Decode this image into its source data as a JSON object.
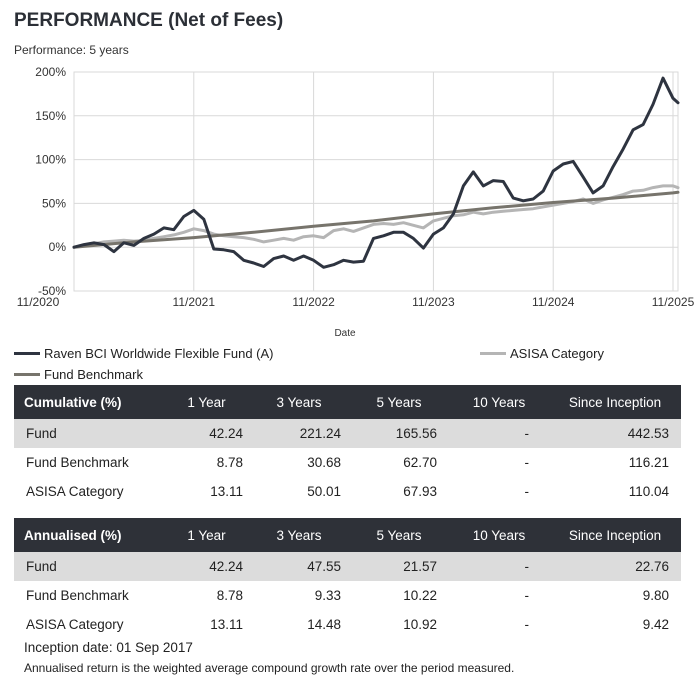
{
  "header": {
    "title": "PERFORMANCE (Net of Fees)",
    "subtitle": "Performance: 5 years"
  },
  "colors": {
    "fund": "#2e3440",
    "benchmark": "#77746c",
    "category": "#b5b5b5",
    "grid": "#d9d9d9",
    "table_header": "#2e3138",
    "row_shade": "#dcdcdc"
  },
  "chart_data": {
    "type": "line",
    "xlabel": "Date",
    "ylabel": "",
    "ylim": [
      -50,
      200
    ],
    "yticks": [
      -50,
      0,
      50,
      100,
      150,
      200
    ],
    "ytick_labels": [
      "-50%",
      "0%",
      "50%",
      "100%",
      "150%",
      "200%"
    ],
    "xlim": [
      0,
      60.5
    ],
    "xtick_labels": [
      "11/2020",
      "11/2021",
      "11/2022",
      "11/2023",
      "11/2024",
      "11/2025"
    ],
    "xticks": [
      0,
      12,
      24,
      36,
      48,
      60
    ],
    "grid": true,
    "series": [
      {
        "name": "Raven BCI Worldwide Flexible Fund (A)",
        "key": "fund",
        "x": [
          0,
          1,
          2,
          3,
          4,
          5,
          6,
          7,
          8,
          9,
          10,
          11,
          12,
          13,
          14,
          15,
          16,
          17,
          18,
          19,
          20,
          21,
          22,
          23,
          24,
          25,
          26,
          27,
          28,
          29,
          30,
          31,
          32,
          33,
          34,
          35,
          36,
          37,
          38,
          39,
          40,
          41,
          42,
          43,
          44,
          45,
          46,
          47,
          48,
          49,
          50,
          51,
          52,
          53,
          54,
          55,
          56,
          57,
          58,
          59,
          60,
          60.5
        ],
        "values": [
          0,
          3,
          5,
          3,
          -5,
          5,
          2,
          10,
          15,
          22,
          20,
          35,
          42,
          32,
          -2,
          -3,
          -5,
          -15,
          -18,
          -22,
          -13,
          -10,
          -15,
          -10,
          -15,
          -23,
          -20,
          -15,
          -17,
          -16,
          10,
          13,
          17,
          17,
          10,
          -1,
          15,
          22,
          38,
          70,
          86,
          70,
          76,
          75,
          56,
          53,
          55,
          64,
          87,
          95,
          98,
          80,
          62,
          70,
          92,
          112,
          134,
          140,
          163,
          193,
          170,
          165
        ]
      },
      {
        "name": "Fund Benchmark",
        "key": "benchmark",
        "x": [
          0,
          6,
          12,
          18,
          24,
          30,
          36,
          42,
          48,
          54,
          60,
          60.5
        ],
        "values": [
          0,
          6,
          11,
          17,
          24,
          30,
          38,
          45,
          51,
          56,
          62,
          62.7
        ]
      },
      {
        "name": "ASISA Category",
        "key": "category",
        "x": [
          0,
          1,
          2,
          3,
          4,
          5,
          6,
          7,
          8,
          9,
          10,
          11,
          12,
          13,
          14,
          15,
          16,
          17,
          18,
          19,
          20,
          21,
          22,
          23,
          24,
          25,
          26,
          27,
          28,
          29,
          30,
          31,
          32,
          33,
          34,
          35,
          36,
          37,
          38,
          39,
          40,
          41,
          42,
          43,
          44,
          45,
          46,
          47,
          48,
          49,
          50,
          51,
          52,
          53,
          54,
          55,
          56,
          57,
          58,
          59,
          60,
          60.5
        ],
        "values": [
          0,
          2,
          4,
          6,
          7,
          8,
          7,
          8,
          10,
          12,
          14,
          17,
          21,
          19,
          15,
          13,
          12,
          11,
          9,
          6,
          8,
          10,
          8,
          12,
          13,
          11,
          19,
          21,
          18,
          22,
          26,
          27,
          26,
          28,
          25,
          22,
          30,
          33,
          36,
          37,
          40,
          38,
          40,
          41,
          42,
          43,
          44,
          46,
          48,
          50,
          52,
          55,
          50,
          54,
          57,
          60,
          64,
          65,
          68,
          70,
          70,
          67.9
        ]
      }
    ],
    "legend": [
      {
        "label": "Raven BCI Worldwide Flexible Fund (A)",
        "key": "fund"
      },
      {
        "label": "ASISA Category",
        "key": "category"
      },
      {
        "label": "Fund Benchmark",
        "key": "benchmark"
      }
    ]
  },
  "tables": [
    {
      "header": [
        "Cumulative (%)",
        "1 Year",
        "3 Years",
        "5 Years",
        "10 Years",
        "Since Inception"
      ],
      "rows": [
        [
          "Fund",
          "42.24",
          "221.24",
          "165.56",
          "-",
          "442.53"
        ],
        [
          "Fund Benchmark",
          "8.78",
          "30.68",
          "62.70",
          "-",
          "116.21"
        ],
        [
          "ASISA Category",
          "13.11",
          "50.01",
          "67.93",
          "-",
          "110.04"
        ]
      ]
    },
    {
      "header": [
        "Annualised (%)",
        "1 Year",
        "3 Years",
        "5 Years",
        "10 Years",
        "Since Inception"
      ],
      "rows": [
        [
          "Fund",
          "42.24",
          "47.55",
          "21.57",
          "-",
          "22.76"
        ],
        [
          "Fund Benchmark",
          "8.78",
          "9.33",
          "10.22",
          "-",
          "9.80"
        ],
        [
          "ASISA Category",
          "13.11",
          "14.48",
          "10.92",
          "-",
          "9.42"
        ]
      ]
    }
  ],
  "footer": {
    "inception": "Inception date: 01 Sep 2017",
    "note": "Annualised return is the weighted average compound growth rate over the period measured."
  }
}
